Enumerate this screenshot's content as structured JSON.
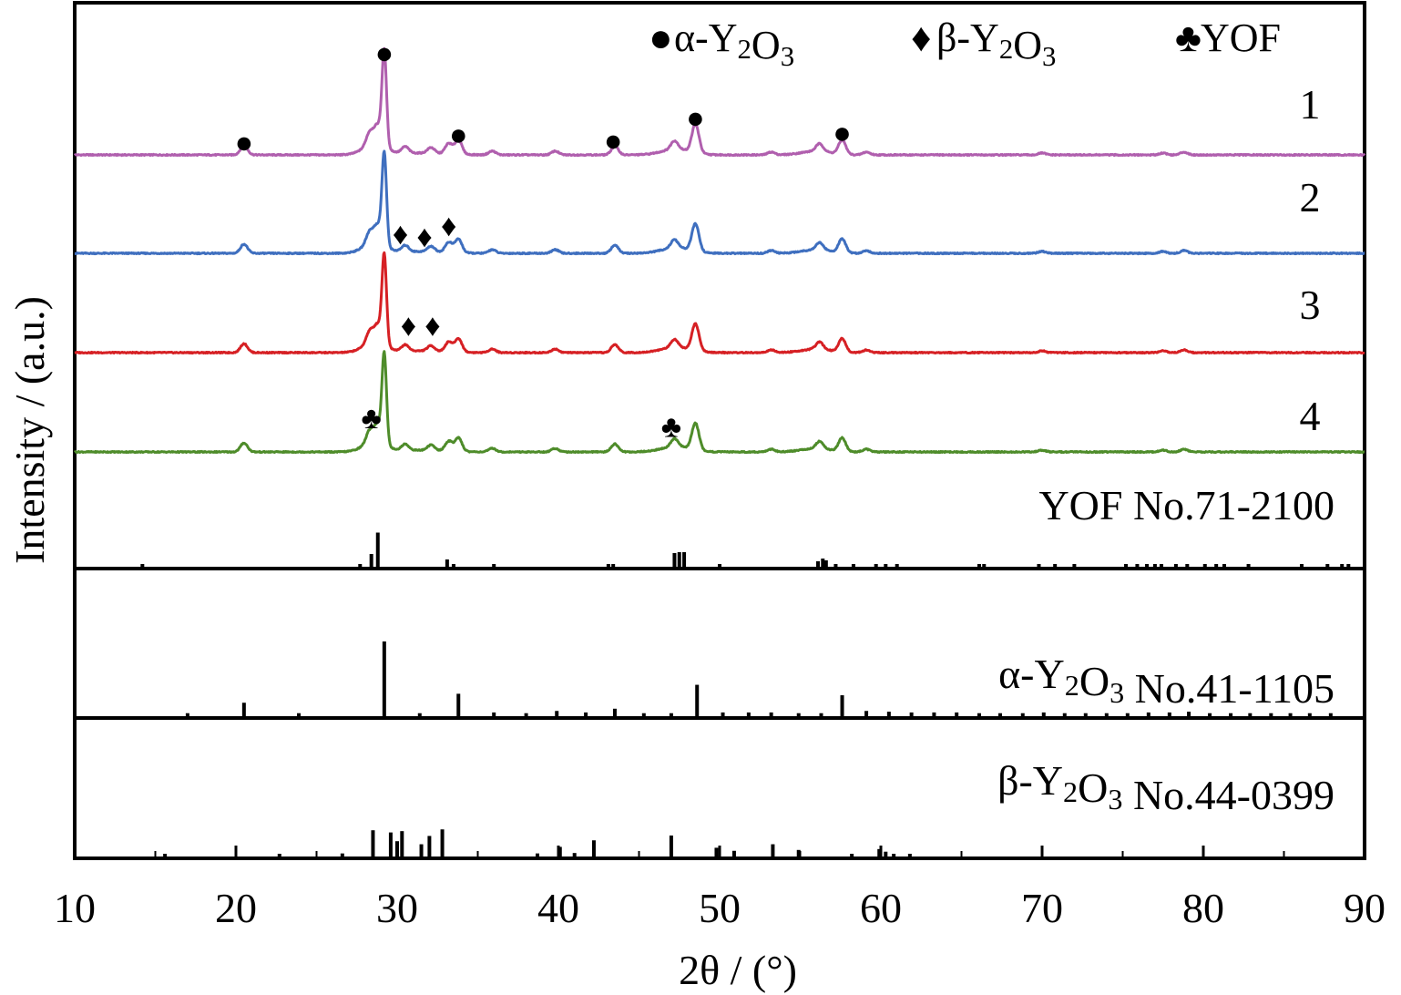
{
  "chart_data": {
    "type": "line",
    "xlabel": "2θ / (°)",
    "ylabel": "Intensity / (a.u.)",
    "xlim": [
      10,
      90
    ],
    "xticks": [
      10,
      20,
      30,
      40,
      50,
      60,
      70,
      80,
      90
    ],
    "xtick_labels": [
      "10",
      "20",
      "30",
      "40",
      "50",
      "60",
      "70",
      "80",
      "90"
    ],
    "legend": [
      {
        "symbol": "●",
        "label": "α-Y2O3"
      },
      {
        "symbol": "♦",
        "label": "β-Y2O3"
      },
      {
        "symbol": "♣",
        "label": "YOF"
      }
    ],
    "series": [
      {
        "name": "1",
        "color": "#b05fae"
      },
      {
        "name": "2",
        "color": "#3f6fbf"
      },
      {
        "name": "3",
        "color": "#d62024"
      },
      {
        "name": "4",
        "color": "#4e8c2a"
      }
    ],
    "peaks": [
      {
        "x": 20.5,
        "h": 0.1
      },
      {
        "x": 28.3,
        "h": 0.14
      },
      {
        "x": 28.8,
        "h": 0.2
      },
      {
        "x": 29.2,
        "h": 1.0
      },
      {
        "x": 30.5,
        "h": 0.07
      },
      {
        "x": 32.1,
        "h": 0.06
      },
      {
        "x": 33.2,
        "h": 0.11
      },
      {
        "x": 33.8,
        "h": 0.15
      },
      {
        "x": 35.9,
        "h": 0.04
      },
      {
        "x": 39.8,
        "h": 0.04
      },
      {
        "x": 43.5,
        "h": 0.09
      },
      {
        "x": 47.2,
        "h": 0.09
      },
      {
        "x": 48.5,
        "h": 0.3
      },
      {
        "x": 53.2,
        "h": 0.03
      },
      {
        "x": 56.2,
        "h": 0.08
      },
      {
        "x": 57.6,
        "h": 0.15
      },
      {
        "x": 59.1,
        "h": 0.03
      },
      {
        "x": 70.0,
        "h": 0.02
      },
      {
        "x": 77.5,
        "h": 0.02
      },
      {
        "x": 78.8,
        "h": 0.03
      }
    ],
    "markers": [
      {
        "series": 0,
        "symbol": "●",
        "x": 20.5,
        "dy": 0.14
      },
      {
        "series": 0,
        "symbol": "●",
        "x": 29.2,
        "dy": 1.08
      },
      {
        "series": 0,
        "symbol": "●",
        "x": 33.8,
        "dy": 0.22
      },
      {
        "series": 0,
        "symbol": "●",
        "x": 43.4,
        "dy": 0.16
      },
      {
        "series": 0,
        "symbol": "●",
        "x": 48.5,
        "dy": 0.4
      },
      {
        "series": 0,
        "symbol": "●",
        "x": 57.6,
        "dy": 0.24
      },
      {
        "series": 1,
        "symbol": "♦",
        "x": 30.2,
        "dy": 0.22
      },
      {
        "series": 1,
        "symbol": "♦",
        "x": 31.7,
        "dy": 0.19
      },
      {
        "series": 1,
        "symbol": "♦",
        "x": 33.2,
        "dy": 0.31
      },
      {
        "series": 2,
        "symbol": "♦",
        "x": 30.7,
        "dy": 0.31
      },
      {
        "series": 2,
        "symbol": "♦",
        "x": 32.2,
        "dy": 0.31
      },
      {
        "series": 3,
        "symbol": "♣",
        "x": 28.4,
        "dy": 0.39
      },
      {
        "series": 3,
        "symbol": "♣",
        "x": 47.0,
        "dy": 0.29
      }
    ],
    "references": [
      {
        "name": "YOF No.71-2100",
        "lines": [
          {
            "x": 14.2,
            "h": 0.04
          },
          {
            "x": 27.7,
            "h": 0.05
          },
          {
            "x": 28.4,
            "h": 0.28
          },
          {
            "x": 28.8,
            "h": 0.75
          },
          {
            "x": 33.1,
            "h": 0.16
          },
          {
            "x": 33.5,
            "h": 0.05
          },
          {
            "x": 36.0,
            "h": 0.03
          },
          {
            "x": 43.1,
            "h": 0.04
          },
          {
            "x": 43.4,
            "h": 0.04
          },
          {
            "x": 47.2,
            "h": 0.3
          },
          {
            "x": 47.5,
            "h": 0.32
          },
          {
            "x": 47.8,
            "h": 0.32
          },
          {
            "x": 50.0,
            "h": 0.04
          },
          {
            "x": 56.1,
            "h": 0.12
          },
          {
            "x": 56.4,
            "h": 0.18
          },
          {
            "x": 56.6,
            "h": 0.14
          },
          {
            "x": 57.2,
            "h": 0.05
          },
          {
            "x": 58.3,
            "h": 0.05
          },
          {
            "x": 59.7,
            "h": 0.04
          },
          {
            "x": 60.3,
            "h": 0.05
          },
          {
            "x": 61.0,
            "h": 0.04
          },
          {
            "x": 66.1,
            "h": 0.04
          },
          {
            "x": 66.4,
            "h": 0.04
          },
          {
            "x": 69.8,
            "h": 0.05
          },
          {
            "x": 70.8,
            "h": 0.05
          },
          {
            "x": 72.0,
            "h": 0.03
          },
          {
            "x": 75.2,
            "h": 0.04
          },
          {
            "x": 75.9,
            "h": 0.05
          },
          {
            "x": 76.5,
            "h": 0.05
          },
          {
            "x": 77.0,
            "h": 0.06
          },
          {
            "x": 77.4,
            "h": 0.05
          },
          {
            "x": 78.3,
            "h": 0.04
          },
          {
            "x": 79.0,
            "h": 0.04
          },
          {
            "x": 80.1,
            "h": 0.04
          },
          {
            "x": 80.8,
            "h": 0.04
          },
          {
            "x": 81.3,
            "h": 0.04
          },
          {
            "x": 82.8,
            "h": 0.04
          },
          {
            "x": 86.1,
            "h": 0.04
          },
          {
            "x": 87.7,
            "h": 0.04
          },
          {
            "x": 88.6,
            "h": 0.05
          },
          {
            "x": 89.0,
            "h": 0.05
          }
        ]
      },
      {
        "name": "α-Y2O3 No.41-1105",
        "lines": [
          {
            "x": 17.0,
            "h": 0.04
          },
          {
            "x": 20.5,
            "h": 0.18
          },
          {
            "x": 23.9,
            "h": 0.04
          },
          {
            "x": 29.2,
            "h": 1.0
          },
          {
            "x": 31.4,
            "h": 0.04
          },
          {
            "x": 33.8,
            "h": 0.3
          },
          {
            "x": 36.0,
            "h": 0.05
          },
          {
            "x": 38.0,
            "h": 0.04
          },
          {
            "x": 39.9,
            "h": 0.07
          },
          {
            "x": 41.7,
            "h": 0.05
          },
          {
            "x": 43.5,
            "h": 0.1
          },
          {
            "x": 45.3,
            "h": 0.04
          },
          {
            "x": 47.0,
            "h": 0.04
          },
          {
            "x": 48.6,
            "h": 0.42
          },
          {
            "x": 50.2,
            "h": 0.05
          },
          {
            "x": 51.8,
            "h": 0.05
          },
          {
            "x": 53.2,
            "h": 0.05
          },
          {
            "x": 54.9,
            "h": 0.04
          },
          {
            "x": 56.3,
            "h": 0.04
          },
          {
            "x": 57.6,
            "h": 0.28
          },
          {
            "x": 59.1,
            "h": 0.07
          },
          {
            "x": 60.5,
            "h": 0.06
          },
          {
            "x": 61.9,
            "h": 0.05
          },
          {
            "x": 63.3,
            "h": 0.05
          },
          {
            "x": 64.7,
            "h": 0.05
          },
          {
            "x": 66.1,
            "h": 0.04
          },
          {
            "x": 67.4,
            "h": 0.04
          },
          {
            "x": 68.8,
            "h": 0.04
          },
          {
            "x": 70.1,
            "h": 0.05
          },
          {
            "x": 71.4,
            "h": 0.04
          },
          {
            "x": 72.7,
            "h": 0.04
          },
          {
            "x": 74.0,
            "h": 0.04
          },
          {
            "x": 75.3,
            "h": 0.04
          },
          {
            "x": 76.6,
            "h": 0.05
          },
          {
            "x": 77.9,
            "h": 0.05
          },
          {
            "x": 79.1,
            "h": 0.06
          },
          {
            "x": 80.4,
            "h": 0.04
          },
          {
            "x": 81.7,
            "h": 0.04
          },
          {
            "x": 82.9,
            "h": 0.04
          },
          {
            "x": 84.2,
            "h": 0.04
          },
          {
            "x": 85.4,
            "h": 0.04
          },
          {
            "x": 86.6,
            "h": 0.04
          },
          {
            "x": 87.9,
            "h": 0.04
          }
        ]
      },
      {
        "name": "β-Y2O3 No.44-0399",
        "lines": [
          {
            "x": 15.6,
            "h": 0.03
          },
          {
            "x": 22.7,
            "h": 0.03
          },
          {
            "x": 26.6,
            "h": 0.07
          },
          {
            "x": 28.5,
            "h": 0.6
          },
          {
            "x": 29.6,
            "h": 0.55
          },
          {
            "x": 30.0,
            "h": 0.35
          },
          {
            "x": 30.3,
            "h": 0.58
          },
          {
            "x": 31.5,
            "h": 0.28
          },
          {
            "x": 32.0,
            "h": 0.47
          },
          {
            "x": 32.8,
            "h": 0.62
          },
          {
            "x": 38.7,
            "h": 0.07
          },
          {
            "x": 40.1,
            "h": 0.22
          },
          {
            "x": 41.0,
            "h": 0.08
          },
          {
            "x": 42.2,
            "h": 0.37
          },
          {
            "x": 47.0,
            "h": 0.48
          },
          {
            "x": 49.8,
            "h": 0.2
          },
          {
            "x": 50.9,
            "h": 0.13
          },
          {
            "x": 53.3,
            "h": 0.28
          },
          {
            "x": 54.9,
            "h": 0.15
          },
          {
            "x": 58.2,
            "h": 0.05
          },
          {
            "x": 59.9,
            "h": 0.17
          },
          {
            "x": 60.3,
            "h": 0.11
          },
          {
            "x": 60.8,
            "h": 0.05
          },
          {
            "x": 61.8,
            "h": 0.04
          }
        ]
      }
    ]
  }
}
